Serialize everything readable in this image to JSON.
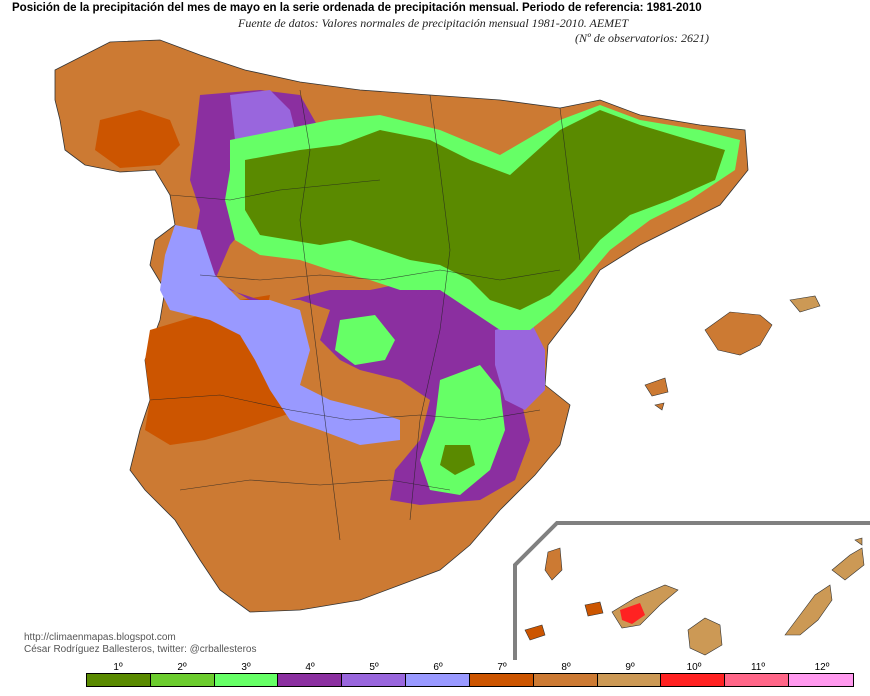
{
  "title": "Posición de la precipitación del mes de mayo en la serie ordenada de precipitación mensual. Periodo de referencia: 1981-2010",
  "subtitle_source": "Fuente de datos: Valores normales de precipitación mensual 1981-2010. AEMET",
  "subtitle_observatories": "(Nº de observatorios: 2621)",
  "credit": {
    "blog": "http://climaenmapas.blogspot.com",
    "author": "César Rodríguez Ballesteros, twitter: @crballesteros"
  },
  "legend": {
    "items": [
      {
        "label": "1º",
        "color": "#5a8a00"
      },
      {
        "label": "2º",
        "color": "#6ccc2e"
      },
      {
        "label": "3º",
        "color": "#66ff66"
      },
      {
        "label": "4º",
        "color": "#8b2fa0"
      },
      {
        "label": "5º",
        "color": "#9966dd"
      },
      {
        "label": "6º",
        "color": "#9999ff"
      },
      {
        "label": "7º",
        "color": "#cc5500"
      },
      {
        "label": "8º",
        "color": "#cc7a33"
      },
      {
        "label": "9º",
        "color": "#cc9955"
      },
      {
        "label": "10º",
        "color": "#ff2222"
      },
      {
        "label": "11º",
        "color": "#ff6688"
      },
      {
        "label": "12º",
        "color": "#ff99ee"
      }
    ]
  }
}
